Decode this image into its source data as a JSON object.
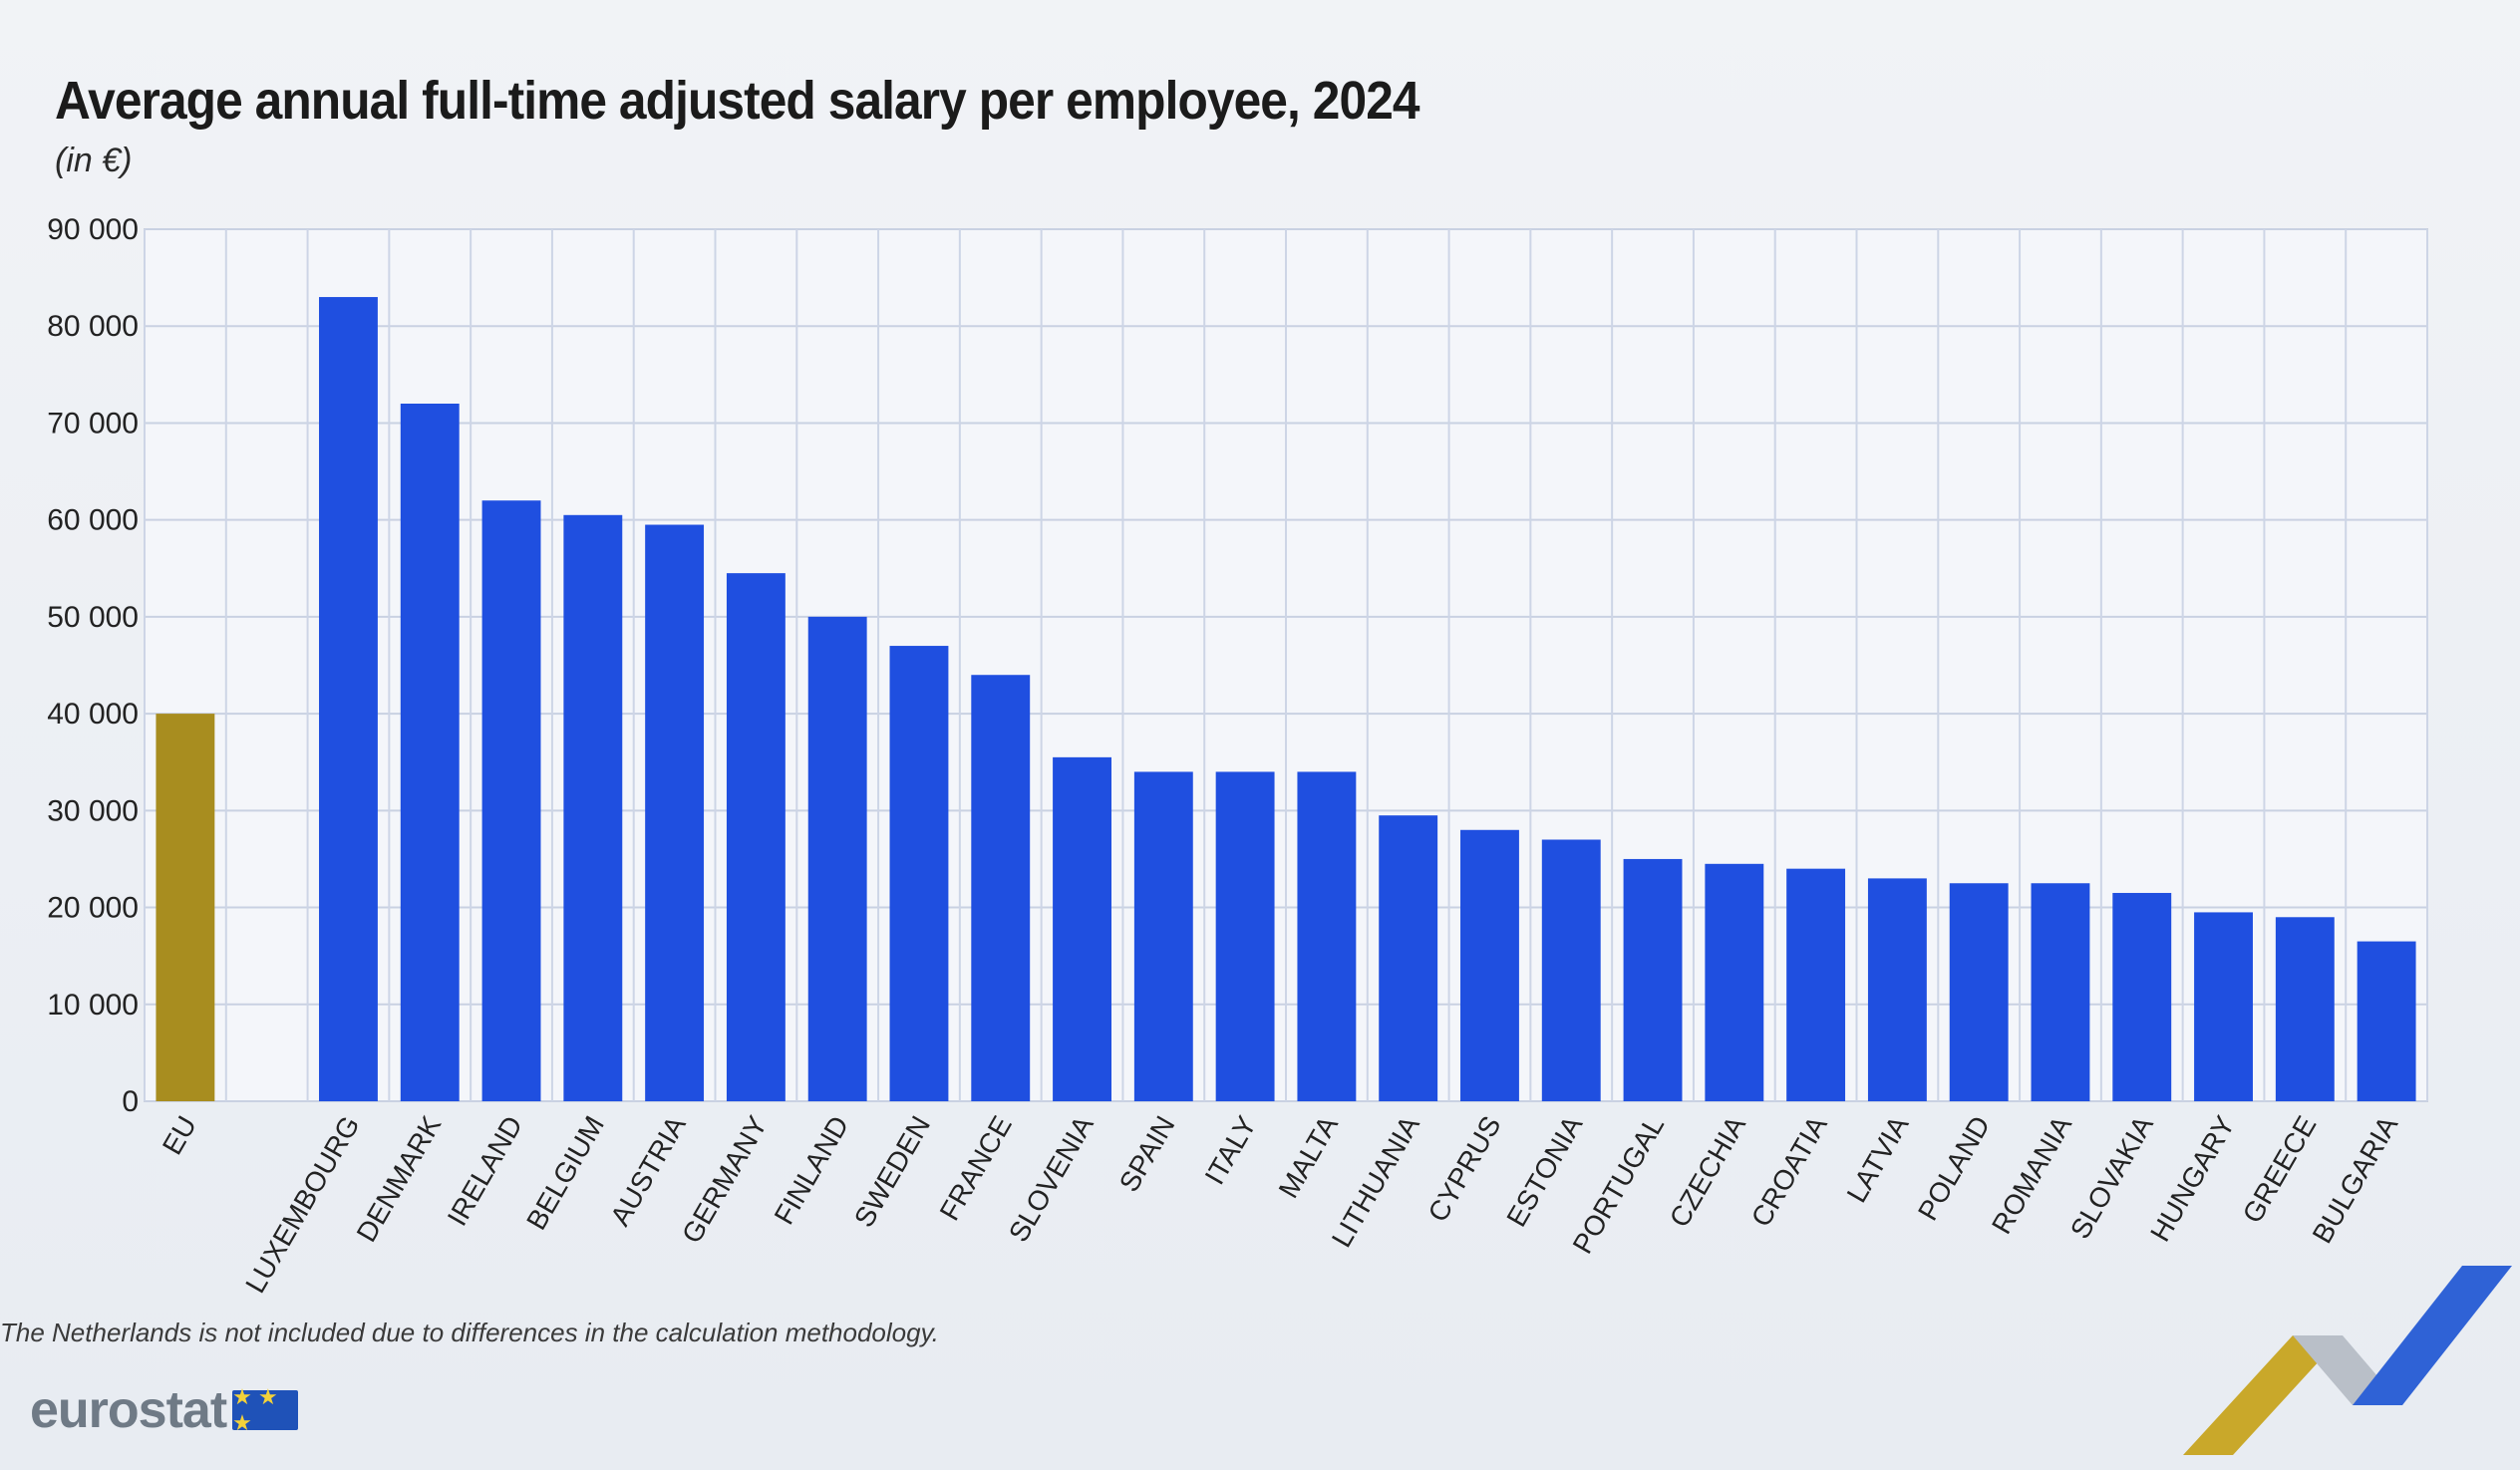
{
  "chart_data": {
    "type": "bar",
    "title": "Average annual full-time adjusted salary per employee, 2024",
    "ylabel": "(in €)",
    "ylim": [
      0,
      90000
    ],
    "yticks": [
      0,
      10000,
      20000,
      30000,
      40000,
      50000,
      60000,
      70000,
      80000,
      90000
    ],
    "ytick_labels": [
      "0",
      "10 000",
      "20 000",
      "30 000",
      "40 000",
      "50 000",
      "60 000",
      "70 000",
      "80 000",
      "90 000"
    ],
    "grid": true,
    "categories": [
      "EU",
      "LUXEMBOURG",
      "DENMARK",
      "IRELAND",
      "BELGIUM",
      "AUSTRIA",
      "GERMANY",
      "FINLAND",
      "SWEDEN",
      "FRANCE",
      "SLOVENIA",
      "SPAIN",
      "ITALY",
      "MALTA",
      "LITHUANIA",
      "CYPRUS",
      "ESTONIA",
      "PORTUGAL",
      "CZECHIA",
      "CROATIA",
      "LATVIA",
      "POLAND",
      "ROMANIA",
      "SLOVAKIA",
      "HUNGARY",
      "GREECE",
      "BULGARIA"
    ],
    "values": [
      40000,
      83000,
      72000,
      62000,
      60500,
      59500,
      54500,
      50000,
      47000,
      44000,
      35500,
      34000,
      34000,
      34000,
      29500,
      28000,
      27000,
      25000,
      24500,
      24000,
      23000,
      22500,
      22500,
      21500,
      19500,
      19000,
      16500
    ],
    "colors": {
      "eu": "#a88d1f",
      "country": "#1f4fe0"
    },
    "footnote": "The Netherlands is not included due to differences in the calculation methodology."
  },
  "brand": {
    "name": "eurostat",
    "flag_stars": "★ ★ ★"
  }
}
